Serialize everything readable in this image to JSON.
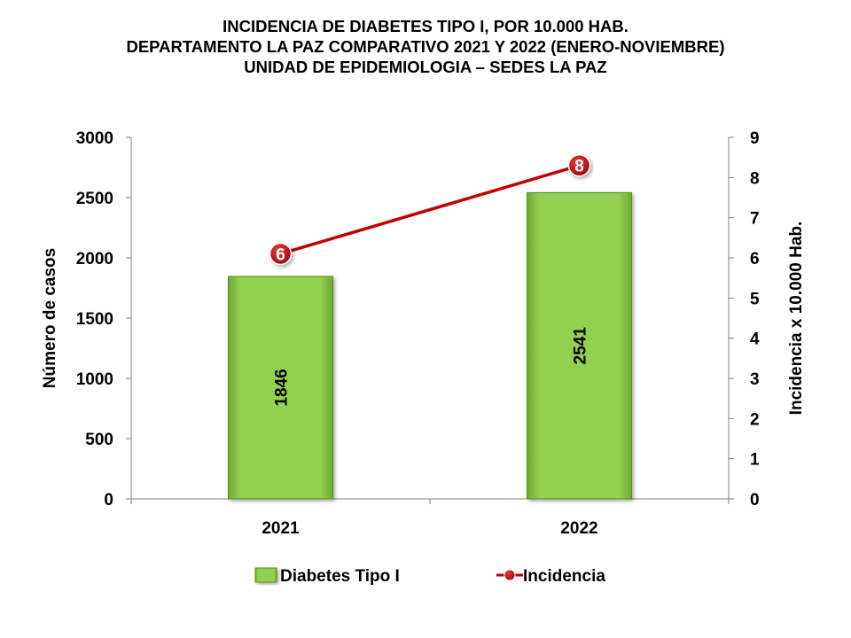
{
  "title_lines": [
    "INCIDENCIA  DE  DIABETES  TIPO I, POR 10.000  HAB.",
    "DEPARTAMENTO  LA PAZ COMPARATIVO  2021 Y 2022 (ENERO-NOVIEMBRE)",
    "UNIDAD DE EPIDEMIOLOGIA – SEDES LA PAZ"
  ],
  "colors": {
    "bar_fill": "#92D050",
    "bar_border": "#5E8E24",
    "line": "#C00000",
    "axis": "#7F7F7F"
  },
  "chart_data": {
    "type": "bar",
    "categories": [
      "2021",
      "2022"
    ],
    "series": [
      {
        "name": "Diabetes Tipo I",
        "type": "bar",
        "axis": "left",
        "values": [
          1846,
          2541
        ],
        "data_labels": [
          "1846",
          "2541"
        ]
      },
      {
        "name": "Incidencia",
        "type": "line",
        "axis": "right",
        "values": [
          6.1,
          8.3
        ],
        "data_labels": [
          "6",
          "8"
        ]
      }
    ],
    "ylabel": "Número de casos",
    "y2label": "Incidencia x 10.000 Hab.",
    "ylim": [
      0,
      3000
    ],
    "yticks": [
      0,
      500,
      1000,
      1500,
      2000,
      2500,
      3000
    ],
    "y2lim": [
      0,
      9
    ],
    "y2ticks": [
      0,
      1,
      2,
      3,
      4,
      5,
      6,
      7,
      8,
      9
    ],
    "grid": false,
    "legend_position": "bottom"
  }
}
